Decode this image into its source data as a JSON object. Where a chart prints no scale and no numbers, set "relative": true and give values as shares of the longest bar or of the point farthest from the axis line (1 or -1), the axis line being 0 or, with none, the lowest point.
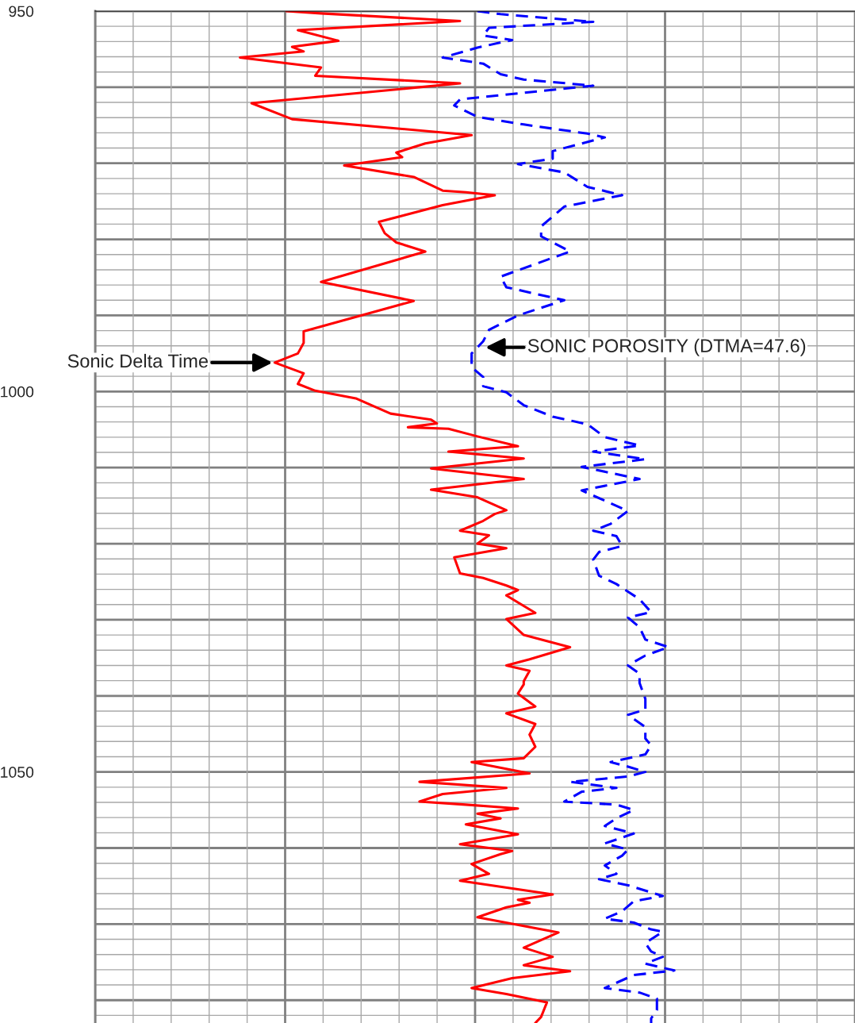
{
  "chart_data": {
    "type": "line",
    "orientation": "horizontal",
    "relative": true,
    "grid": true,
    "tick_labels": "y",
    "ylim": [
      1083,
      950
    ],
    "yticks": [
      950,
      1000,
      1050
    ],
    "series": [
      {
        "color": "#ff0000",
        "line_style": "solid",
        "x": [
          950.0,
          950.3,
          951.3,
          952.5,
          953.9,
          954.7,
          955.3,
          956.1,
          957.4,
          958.5,
          959.5,
          962.1,
          964.2,
          966.3,
          967.4,
          968.6,
          969.2,
          970.3,
          971.8,
          973.6,
          973.8,
          974.2,
          975.5,
          977.7,
          979.2,
          980.4,
          981.6,
          985.6,
          988.1,
          992.1,
          993.6,
          995.0,
          996.2,
          997.6,
          999.0,
          999.9,
          1000.9,
          1002.9,
          1003.7,
          1004.2,
          1004.7,
          1004.9,
          1005.9,
          1007.2,
          1007.9,
          1008.8,
          1010.1,
          1011.5,
          1012.9,
          1013.9,
          1015.6,
          1016.1,
          1017.0,
          1018.3,
          1018.9,
          1020.0,
          1020.6,
          1021.8,
          1023.9,
          1024.5,
          1025.5,
          1026.1,
          1026.8,
          1029.1,
          1029.9,
          1032.0,
          1033.6,
          1035.2,
          1036.0,
          1036.7,
          1038.1,
          1038.5,
          1039.7,
          1041.4,
          1042.3,
          1043.7,
          1045.1,
          1046.7,
          1048.2,
          1048.7,
          1050.2,
          1051.3,
          1052.1,
          1052.9,
          1053.9,
          1054.3,
          1054.8,
          1055.5,
          1056.1,
          1056.9,
          1058.2,
          1059.5,
          1060.4,
          1060.8,
          1062.1,
          1063.4,
          1064.3,
          1066.1,
          1066.8,
          1067.2,
          1067.8,
          1069.1,
          1071.1,
          1073.1,
          1074.3,
          1075.4,
          1076.2,
          1077.1,
          1078.4,
          1079.2,
          1080.3,
          1082.2,
          1083.0
        ],
        "values": [
          0.33,
          0.39,
          0.63,
          0.35,
          0.42,
          0.34,
          0.36,
          0.25,
          0.39,
          0.38,
          0.63,
          0.27,
          0.34,
          0.65,
          0.57,
          0.52,
          0.53,
          0.43,
          0.55,
          0.6,
          0.64,
          0.69,
          0.6,
          0.49,
          0.5,
          0.52,
          0.57,
          0.39,
          0.55,
          0.36,
          0.36,
          0.35,
          0.31,
          0.36,
          0.35,
          0.38,
          0.45,
          0.51,
          0.58,
          0.59,
          0.54,
          0.61,
          0.66,
          0.73,
          0.61,
          0.74,
          0.58,
          0.74,
          0.58,
          0.66,
          0.71,
          0.69,
          0.67,
          0.63,
          0.68,
          0.66,
          0.71,
          0.62,
          0.63,
          0.67,
          0.71,
          0.73,
          0.71,
          0.76,
          0.71,
          0.74,
          0.82,
          0.75,
          0.71,
          0.75,
          0.74,
          0.74,
          0.73,
          0.76,
          0.71,
          0.76,
          0.75,
          0.76,
          0.74,
          0.65,
          0.75,
          0.56,
          0.71,
          0.6,
          0.56,
          0.64,
          0.73,
          0.66,
          0.7,
          0.64,
          0.73,
          0.63,
          0.72,
          0.7,
          0.65,
          0.68,
          0.63,
          0.79,
          0.73,
          0.75,
          0.71,
          0.66,
          0.8,
          0.74,
          0.79,
          0.74,
          0.82,
          0.72,
          0.65,
          0.71,
          0.78,
          0.77,
          0.76
        ]
      },
      {
        "color": "#0000ff",
        "line_style": "dashed",
        "x": [
          950.0,
          950.4,
          951.4,
          952.2,
          953.2,
          953.8,
          954.8,
          956.1,
          956.9,
          958.3,
          959.0,
          959.8,
          961.6,
          962.4,
          963.9,
          964.9,
          966.1,
          966.6,
          968.4,
          969.4,
          970.1,
          971.2,
          973.1,
          974.2,
          975.7,
          978.3,
          979.6,
          981.6,
          984.9,
          986.3,
          988.0,
          990.0,
          991.9,
          993.4,
          995.0,
          996.8,
          998.1,
          999.3,
          1000.1,
          1001.8,
          1003.3,
          1004.3,
          1006.0,
          1007.1,
          1007.9,
          1008.9,
          1009.9,
          1011.5,
          1013.0,
          1015.7,
          1017.4,
          1018.3,
          1019.0,
          1020.3,
          1021.1,
          1022.1,
          1024.2,
          1025.3,
          1026.3,
          1027.3,
          1029.0,
          1029.7,
          1031.0,
          1032.6,
          1033.6,
          1034.7,
          1036.0,
          1037.1,
          1038.3,
          1040.4,
          1041.8,
          1042.5,
          1044.1,
          1045.6,
          1046.5,
          1047.7,
          1048.7,
          1049.3,
          1050.0,
          1050.6,
          1051.3,
          1052.1,
          1052.6,
          1053.9,
          1054.3,
          1055.0,
          1056.1,
          1057.1,
          1058.1,
          1059.4,
          1060.2,
          1061.0,
          1062.3,
          1063.4,
          1064.1,
          1064.9,
          1066.3,
          1067.0,
          1068.3,
          1069.3,
          1069.8,
          1070.7,
          1071.0,
          1072.5,
          1073.6,
          1074.3,
          1075.2,
          1076.1,
          1076.7,
          1078.4,
          1079.0,
          1079.8,
          1081.3,
          1082.4,
          1083.0
        ],
        "values": [
          0.66,
          0.7,
          0.86,
          0.68,
          0.67,
          0.72,
          0.66,
          0.6,
          0.67,
          0.7,
          0.74,
          0.86,
          0.63,
          0.62,
          0.66,
          0.74,
          0.85,
          0.88,
          0.79,
          0.79,
          0.73,
          0.81,
          0.85,
          0.91,
          0.81,
          0.77,
          0.77,
          0.82,
          0.7,
          0.71,
          0.81,
          0.73,
          0.68,
          0.67,
          0.65,
          0.65,
          0.67,
          0.67,
          0.71,
          0.74,
          0.79,
          0.85,
          0.88,
          0.94,
          0.86,
          0.95,
          0.84,
          0.94,
          0.84,
          0.92,
          0.89,
          0.86,
          0.9,
          0.91,
          0.87,
          0.86,
          0.87,
          0.9,
          0.92,
          0.94,
          0.96,
          0.92,
          0.94,
          0.95,
          0.99,
          0.95,
          0.92,
          0.94,
          0.94,
          0.95,
          0.95,
          0.92,
          0.95,
          0.95,
          0.96,
          0.95,
          0.89,
          0.92,
          0.95,
          0.92,
          0.82,
          0.9,
          0.84,
          0.81,
          0.9,
          0.93,
          0.9,
          0.88,
          0.93,
          0.88,
          0.92,
          0.91,
          0.88,
          0.9,
          0.87,
          0.92,
          0.98,
          0.93,
          0.91,
          0.88,
          0.93,
          0.96,
          0.98,
          0.95,
          0.96,
          0.98,
          0.95,
          1.0,
          0.93,
          0.88,
          0.94,
          0.97,
          0.97,
          0.96,
          0.96
        ]
      }
    ],
    "annotations": [
      {
        "text": "Sonic Delta Time",
        "x": 0.31,
        "y": 996.2
      },
      {
        "text": "SONIC POROSITY (DTMA=47.6)",
        "x": 0.67,
        "y": 994.2
      }
    ]
  }
}
